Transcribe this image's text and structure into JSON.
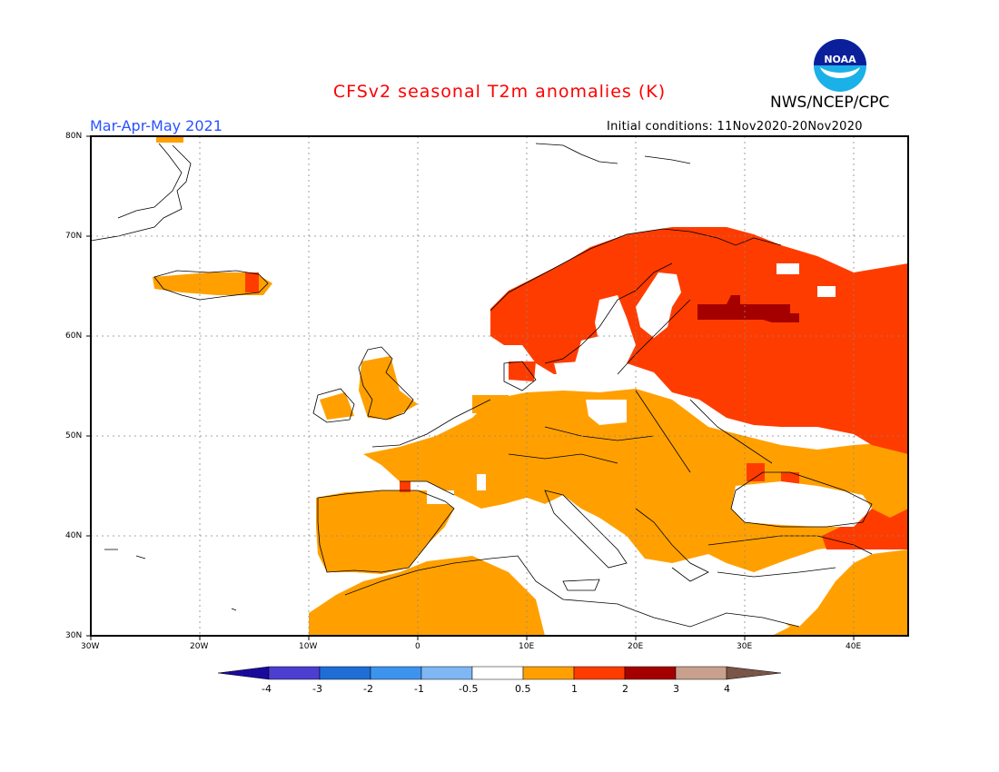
{
  "title": "CFSv2 seasonal T2m anomalies (K)",
  "agency": "NWS/NCEP/CPC",
  "logo_text": "NOAA",
  "season": "Mar-Apr-May 2021",
  "initial_conditions": "Initial conditions: 11Nov2020-20Nov2020",
  "lat_labels": [
    "80N",
    "70N",
    "60N",
    "50N",
    "40N",
    "30N"
  ],
  "lon_labels": [
    "30W",
    "20W",
    "10W",
    "0",
    "10E",
    "20E",
    "30E",
    "40E"
  ],
  "colorbar": {
    "labels": [
      "-4",
      "-3",
      "-2",
      "-1",
      "-0.5",
      "0.5",
      "1",
      "2",
      "3",
      "4"
    ],
    "colors": [
      "#1a0a9c",
      "#4b3ed1",
      "#1e6ed6",
      "#3d94ee",
      "#7fb7f4",
      "#ffffff",
      "#ffa000",
      "#ff3c00",
      "#a50000",
      "#c9a08e",
      "#7a5548"
    ]
  },
  "colors": {
    "anomaly_0_5_to_1": "#ffa000",
    "anomaly_1_to_2": "#ff3c00",
    "anomaly_2_to_3": "#a50000"
  }
}
